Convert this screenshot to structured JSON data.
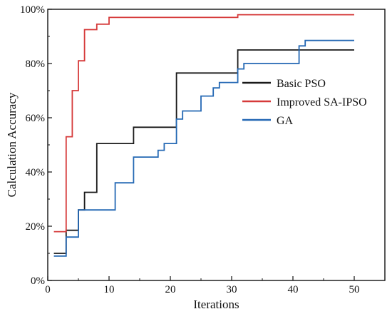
{
  "chart_data": {
    "type": "line",
    "xlabel": "Iterations",
    "ylabel": "Calculation Accuracy",
    "xlim": [
      0,
      55
    ],
    "ylim": [
      0,
      100
    ],
    "x_ticks": [
      0,
      10,
      20,
      30,
      40,
      50
    ],
    "y_ticks": [
      0,
      20,
      40,
      60,
      80,
      100
    ],
    "y_tick_labels": [
      "0%",
      "20%",
      "40%",
      "60%",
      "80%",
      "100%"
    ],
    "grid": false,
    "legend_position": "inside-right",
    "series": [
      {
        "name": "Basic PSO",
        "color": "#1a1a1a",
        "x": [
          1,
          2,
          3,
          4,
          5,
          6,
          7,
          8,
          9,
          10,
          11,
          12,
          13,
          14,
          15,
          16,
          17,
          18,
          19,
          20,
          21,
          22,
          23,
          24,
          25,
          26,
          27,
          28,
          29,
          30,
          31,
          32,
          33,
          34,
          35,
          36,
          37,
          38,
          39,
          40,
          41,
          42,
          43,
          44,
          45,
          46,
          47,
          48,
          49,
          50
        ],
        "y": [
          10,
          10,
          18.5,
          18.5,
          26,
          32.5,
          32.5,
          50.5,
          50.5,
          50.5,
          50.5,
          50.5,
          50.5,
          56.5,
          56.5,
          56.5,
          56.5,
          56.5,
          56.5,
          56.5,
          76.5,
          76.5,
          76.5,
          76.5,
          76.5,
          76.5,
          76.5,
          76.5,
          76.5,
          76.5,
          85,
          85,
          85,
          85,
          85,
          85,
          85,
          85,
          85,
          85,
          85,
          85,
          85,
          85,
          85,
          85,
          85,
          85,
          85,
          85
        ]
      },
      {
        "name": "Improved SA-IPSO",
        "color": "#d63a3a",
        "x": [
          1,
          2,
          3,
          4,
          5,
          6,
          7,
          8,
          9,
          10,
          11,
          12,
          13,
          14,
          15,
          16,
          17,
          18,
          19,
          20,
          21,
          22,
          23,
          24,
          25,
          26,
          27,
          28,
          29,
          30,
          31,
          32,
          33,
          34,
          35,
          36,
          37,
          38,
          39,
          40,
          41,
          42,
          43,
          44,
          45,
          46,
          47,
          48,
          49,
          50
        ],
        "y": [
          18,
          18,
          53,
          70,
          81,
          92.5,
          92.5,
          94.5,
          94.5,
          97,
          97,
          97,
          97,
          97,
          97,
          97,
          97,
          97,
          97,
          97,
          97,
          97,
          97,
          97,
          97,
          97,
          97,
          97,
          97,
          97,
          98,
          98,
          98,
          98,
          98,
          98,
          98,
          98,
          98,
          98,
          98,
          98,
          98,
          98,
          98,
          98,
          98,
          98,
          98,
          98
        ]
      },
      {
        "name": "GA",
        "color": "#2468b4",
        "x": [
          1,
          2,
          3,
          4,
          5,
          6,
          7,
          8,
          9,
          10,
          11,
          12,
          13,
          14,
          15,
          16,
          17,
          18,
          19,
          20,
          21,
          22,
          23,
          24,
          25,
          26,
          27,
          28,
          29,
          30,
          31,
          32,
          33,
          34,
          35,
          36,
          37,
          38,
          39,
          40,
          41,
          42,
          43,
          44,
          45,
          46,
          47,
          48,
          49,
          50
        ],
        "y": [
          9,
          9,
          16,
          16,
          26,
          26,
          26,
          26,
          26,
          26,
          36,
          36,
          36,
          45.5,
          45.5,
          45.5,
          45.5,
          48,
          50.5,
          50.5,
          59.5,
          62.5,
          62.5,
          62.5,
          68,
          68,
          71,
          73,
          73,
          73,
          78,
          80,
          80,
          80,
          80,
          80,
          80,
          80,
          80,
          80,
          86.5,
          88.5,
          88.5,
          88.5,
          88.5,
          88.5,
          88.5,
          88.5,
          88.5,
          88.5
        ]
      }
    ]
  }
}
